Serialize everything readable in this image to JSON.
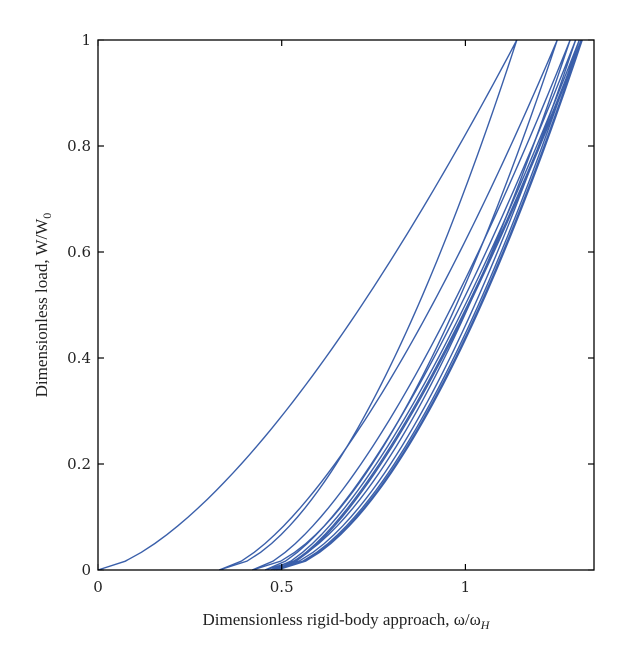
{
  "chart_data": {
    "type": "line",
    "title": "",
    "xlabel": "Dimensionless rigid-body approach, ω/ω",
    "xlabel_sub": "H",
    "ylabel": "Dimensionless load, W/W",
    "ylabel_sub": "0",
    "xlim": [
      0,
      1.35
    ],
    "ylim": [
      0,
      1
    ],
    "xticks": [
      {
        "value": 0,
        "label": "0"
      },
      {
        "value": 0.5,
        "label": "0.5"
      },
      {
        "value": 1,
        "label": "1"
      }
    ],
    "yticks": [
      {
        "value": 0,
        "label": "0"
      },
      {
        "value": 0.2,
        "label": "0.2"
      },
      {
        "value": 0.4,
        "label": "0.4"
      },
      {
        "value": 0.6,
        "label": "0.6"
      },
      {
        "value": 0.8,
        "label": "0.8"
      },
      {
        "value": 1,
        "label": "1"
      }
    ],
    "grid": false,
    "color": "#3a5faa",
    "series": [
      {
        "loading_start": 0.0,
        "peak": 1.14,
        "unloading_end": 0.33
      },
      {
        "loading_start": 0.33,
        "peak": 1.25,
        "unloading_end": 0.42
      },
      {
        "loading_start": 0.42,
        "peak": 1.285,
        "unloading_end": 0.455
      },
      {
        "loading_start": 0.455,
        "peak": 1.3,
        "unloading_end": 0.47
      },
      {
        "loading_start": 0.47,
        "peak": 1.31,
        "unloading_end": 0.48
      },
      {
        "loading_start": 0.48,
        "peak": 1.315,
        "unloading_end": 0.485
      },
      {
        "loading_start": 0.485,
        "peak": 1.318,
        "unloading_end": 0.488
      }
    ]
  }
}
